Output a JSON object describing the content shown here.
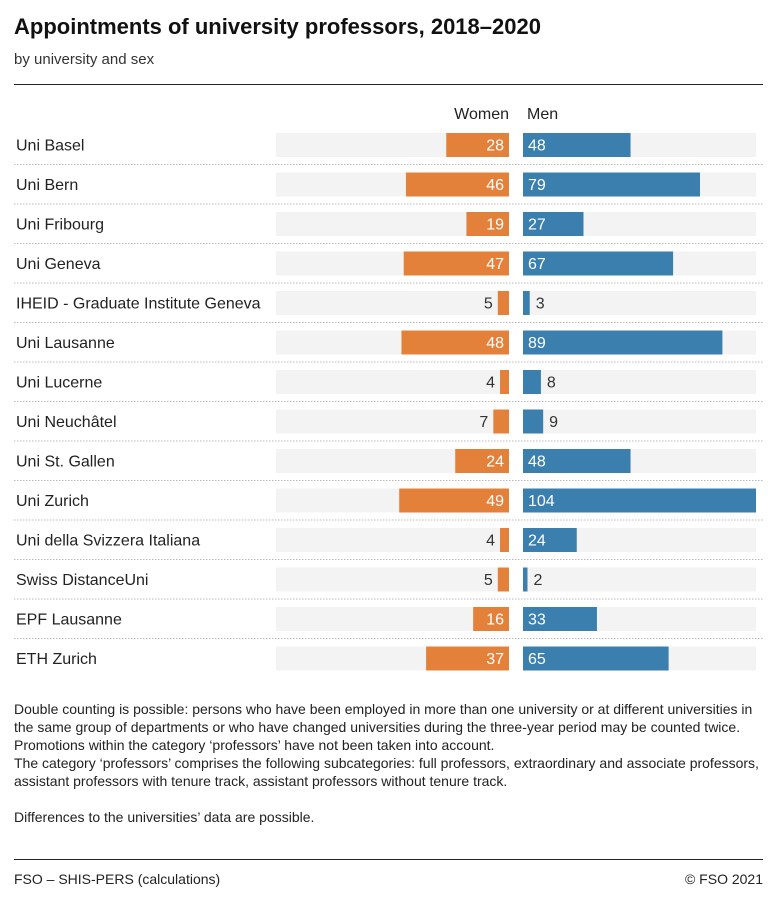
{
  "colors": {
    "women": "#e3803a",
    "men": "#3b7fae",
    "background_bar": "#f3f3f3"
  },
  "chart_data": {
    "type": "bar",
    "orientation": "horizontal-butterfly",
    "title": "Appointments of university professors, 2018–2020",
    "subtitle": "by university and sex",
    "categories": [
      "Uni Basel",
      "Uni Bern",
      "Uni Fribourg",
      "Uni Geneva",
      "IHEID - Graduate Institute Geneva",
      "Uni Lausanne",
      "Uni Lucerne",
      "Uni Neuchâtel",
      "Uni St. Gallen",
      "Uni Zurich",
      "Uni della Svizzera Italiana",
      "Swiss DistanceUni",
      "EPF Lausanne",
      "ETH Zurich"
    ],
    "series": [
      {
        "name": "Women",
        "values": [
          28,
          46,
          19,
          47,
          5,
          48,
          4,
          7,
          24,
          49,
          4,
          5,
          16,
          37
        ]
      },
      {
        "name": "Men",
        "values": [
          48,
          79,
          27,
          67,
          3,
          89,
          8,
          9,
          48,
          104,
          24,
          2,
          33,
          65
        ]
      }
    ],
    "xlim": [
      0,
      104
    ],
    "grid": false
  },
  "notes": [
    "Double counting is possible: persons who have been employed in more than one university or at different universities in the same group of departments or who have changed universities during the three-year period may be counted twice.",
    "Promotions within the category ‘professors’ have not been taken into account.",
    "The category ‘professors’ comprises the following subcategories: full professors, extraordinary and associate professors, assistant professors with tenure track, assistant professors without tenure track.",
    "Differences to the universities’ data are possible."
  ],
  "footer": {
    "source": "FSO – SHIS-PERS (calculations)",
    "copyright": "© FSO 2021"
  }
}
